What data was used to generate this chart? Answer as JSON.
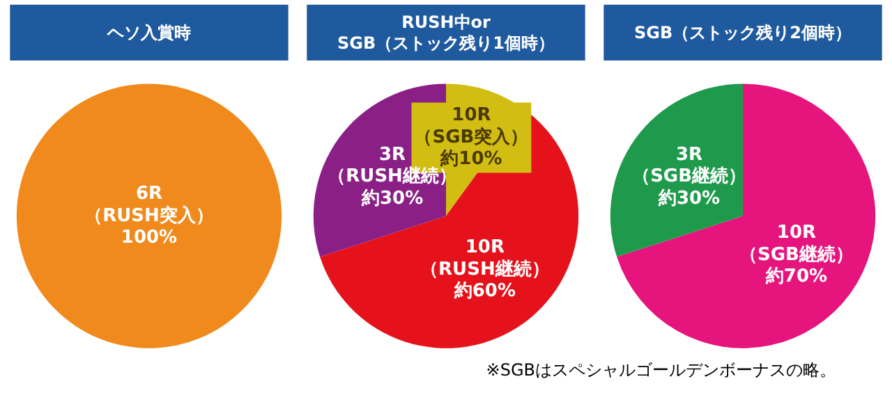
{
  "chart_data": [
    {
      "type": "pie",
      "title": "ヘソ入賞時",
      "categories": [
        "6R\n（RUSH突入）"
      ],
      "values": [
        100
      ],
      "colors": [
        "#f08a1c"
      ],
      "value_labels": [
        "100%"
      ],
      "legend": false
    },
    {
      "type": "pie",
      "title": "RUSH中or\nSGB（ストック残り1個時）",
      "categories": [
        "10R\n（SGB突入）",
        "10R\n（RUSH継続）",
        "3R\n（RUSH継続）"
      ],
      "values": [
        10,
        60,
        30
      ],
      "colors": [
        "#d2bd12",
        "#e5121c",
        "#8a1f86"
      ],
      "value_labels": [
        "約10%",
        "約60%",
        "約30%"
      ],
      "legend": false
    },
    {
      "type": "pie",
      "title": "SGB（ストック残り2個時）",
      "categories": [
        "10R\n（SGB継続）",
        "3R\n（SGB継続）"
      ],
      "values": [
        70,
        30
      ],
      "colors": [
        "#e5157d",
        "#1f9a4c"
      ],
      "value_labels": [
        "約70%",
        "約30%"
      ],
      "legend": false,
      "annotations": [
        "※SGBはスペシャルゴールデンボーナスの略。"
      ]
    }
  ]
}
